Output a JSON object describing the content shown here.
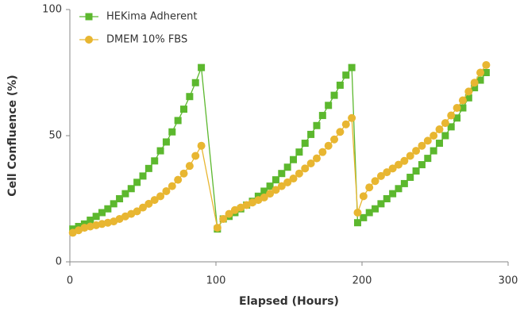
{
  "chart_data": {
    "type": "line",
    "xlabel": "Elapsed (Hours)",
    "ylabel": "Cell Confluence (%)",
    "x": [
      2,
      6,
      10,
      14,
      18,
      22,
      26,
      30,
      34,
      38,
      42,
      46,
      50,
      54,
      58,
      62,
      66,
      70,
      74,
      78,
      82,
      86,
      90,
      101,
      105,
      109,
      113,
      117,
      121,
      125,
      129,
      133,
      137,
      141,
      145,
      149,
      153,
      157,
      161,
      165,
      169,
      173,
      177,
      181,
      185,
      189,
      193,
      197,
      201,
      205,
      209,
      213,
      217,
      221,
      225,
      229,
      233,
      237,
      241,
      245,
      249,
      253,
      257,
      261,
      265,
      269,
      273,
      277,
      281,
      285
    ],
    "series": [
      {
        "name": "HEKima Adherent",
        "color": "#5cb82e",
        "marker": "square",
        "values": [
          13,
          14,
          15,
          16.5,
          18,
          19.5,
          21,
          23,
          25,
          27,
          29,
          31.5,
          34,
          37,
          40,
          44,
          47.5,
          51.5,
          56,
          60.5,
          65.5,
          71,
          77,
          13,
          17,
          18,
          19.5,
          21,
          22.5,
          24,
          26,
          28,
          30,
          32.5,
          35,
          37.5,
          40.5,
          43.5,
          47,
          50.5,
          54,
          58,
          62,
          66,
          70,
          74,
          77,
          15.5,
          17.5,
          19.5,
          21,
          23,
          25,
          27,
          29,
          31,
          33.5,
          36,
          38.5,
          41,
          44,
          47,
          50,
          53.5,
          57,
          61,
          65,
          69,
          72,
          75
        ]
      },
      {
        "name": "DMEM 10% FBS",
        "color": "#e8b631",
        "marker": "circle",
        "values": [
          11.5,
          12.5,
          13.5,
          14,
          14.5,
          15,
          15.5,
          16,
          17,
          18,
          19,
          20,
          21.5,
          23,
          24.5,
          26,
          28,
          30,
          32.5,
          35,
          38,
          42,
          46,
          13.5,
          17,
          19,
          20.5,
          21.5,
          22.5,
          23.5,
          24.5,
          25.5,
          27,
          28.5,
          30,
          31.5,
          33,
          35,
          37,
          39,
          41,
          43.5,
          46,
          48.5,
          51.5,
          54.5,
          57,
          19.5,
          26,
          29.5,
          32,
          34,
          35.5,
          37,
          38.5,
          40,
          42,
          44,
          46,
          48,
          50,
          52.5,
          55,
          58,
          61,
          64,
          67.5,
          71,
          75,
          78
        ]
      }
    ],
    "xlim": [
      0,
      300
    ],
    "xticks": [
      0,
      100,
      200,
      300
    ],
    "ylim": [
      0,
      100
    ],
    "yticks": [
      0,
      50,
      100
    ],
    "legend": "upper left"
  }
}
